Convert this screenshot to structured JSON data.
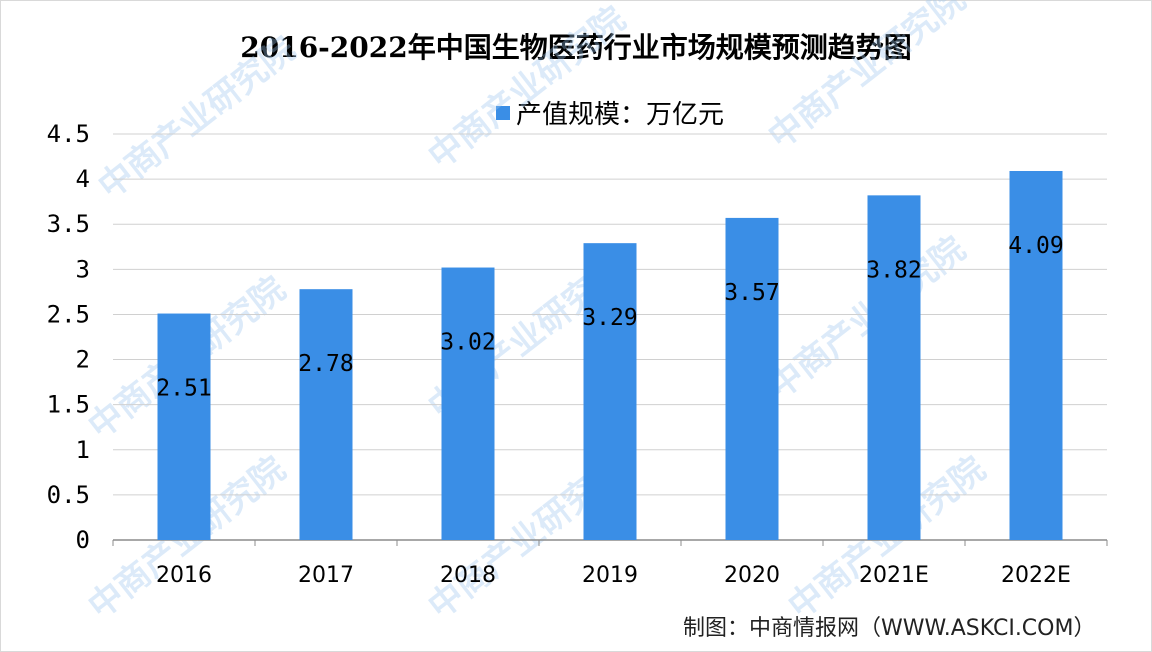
{
  "chart_data": {
    "type": "bar",
    "title": "2016-2022年中国生物医药行业市场规模预测趋势图",
    "categories": [
      "2016",
      "2017",
      "2018",
      "2019",
      "2020",
      "2021E",
      "2022E"
    ],
    "series": [
      {
        "name": "产值规模：万亿元",
        "values": [
          2.51,
          2.78,
          3.02,
          3.29,
          3.57,
          3.82,
          4.09
        ],
        "color": "#3a8ee6"
      }
    ],
    "y_ticks": [
      "0",
      "0.5",
      "1",
      "1.5",
      "2",
      "2.5",
      "3",
      "3.5",
      "4",
      "4.5"
    ],
    "ylim": [
      0,
      4.5
    ],
    "grid": true,
    "legend_position": "top-center",
    "source": "制图：中商情报网（WWW.ASKCI.COM）"
  },
  "watermark": "中商产业研究院"
}
